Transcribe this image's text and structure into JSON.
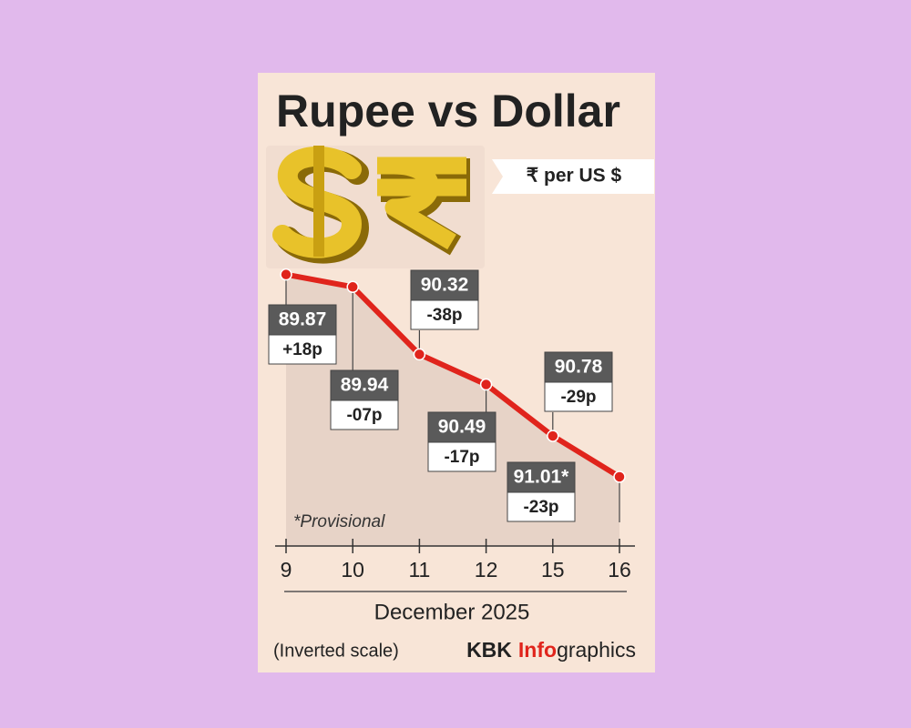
{
  "chart_data": {
    "type": "line",
    "title": "Rupee vs Dollar",
    "unit_label": "₹ per US $",
    "categories": [
      "9",
      "10",
      "11",
      "12",
      "15",
      "16"
    ],
    "xlabel": "December 2025",
    "series": [
      {
        "name": "₹ per US $",
        "color": "#e0241c",
        "values": [
          89.87,
          89.94,
          90.32,
          90.49,
          90.78,
          91.01
        ],
        "value_labels": [
          "89.87",
          "89.94",
          "90.32",
          "90.49",
          "90.78",
          "91.01*"
        ],
        "change_labels": [
          "+18p",
          "-07p",
          "-38p",
          "-17p",
          "-29p",
          "-23p"
        ]
      }
    ],
    "ylim": [
      89.8,
      91.4
    ],
    "y_inverted": true,
    "note": "*Provisional",
    "footer": "(Inverted scale)",
    "credit": [
      "KBK",
      "Info",
      "graphics"
    ]
  }
}
